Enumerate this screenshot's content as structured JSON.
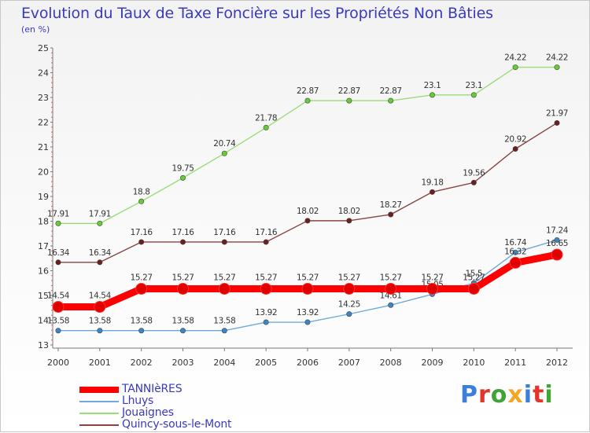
{
  "header": {
    "title": "Evolution du Taux de Taxe Foncière sur les Propriétés Non Bâties",
    "subtitle": "(en %)"
  },
  "logo": {
    "text": "Proxiti",
    "letter_colors": [
      "#3b7fd9",
      "#e2352b",
      "#3fa535",
      "#f5a623",
      "#3b7fd9",
      "#e2352b",
      "#3fa535"
    ]
  },
  "chart_data": {
    "type": "line",
    "title": "Evolution du Taux de Taxe Foncière sur les Propriétés Non Bâties",
    "ylabel": "(en %)",
    "xlabel": "",
    "ylim": [
      13,
      25
    ],
    "y_ticks": [
      13,
      14,
      15,
      16,
      17,
      18,
      19,
      20,
      21,
      22,
      23,
      24,
      25
    ],
    "x": [
      "2000",
      "2001",
      "2002",
      "2003",
      "2004",
      "2005",
      "2006",
      "2007",
      "2008",
      "2009",
      "2010",
      "2011",
      "2012"
    ],
    "grid": false,
    "legend_position": "bottom-left",
    "series": [
      {
        "name": "TANNIèRES",
        "color": "#ff0000",
        "marker_color": "#e00000",
        "thick": true,
        "values": [
          14.54,
          14.54,
          15.27,
          15.27,
          15.27,
          15.27,
          15.27,
          15.27,
          15.27,
          15.27,
          15.27,
          16.32,
          16.65
        ],
        "labels": [
          "14.54",
          "14.54",
          "15.27",
          "15.27",
          "15.27",
          "15.27",
          "15.27",
          "15.27",
          "15.27",
          "15.27",
          "15.27",
          "16.32",
          "16.65"
        ]
      },
      {
        "name": "Lhuys",
        "color": "#6fa8dc",
        "marker_color": "#3d85c6",
        "thick": false,
        "values": [
          13.58,
          13.58,
          13.58,
          13.58,
          13.58,
          13.92,
          13.92,
          14.25,
          14.61,
          15.05,
          15.5,
          16.74,
          17.24
        ],
        "labels": [
          "13.58",
          "13.58",
          "13.58",
          "13.58",
          "13.58",
          "13.92",
          "13.92",
          "14.25",
          "14.61",
          "15.05",
          "15.5",
          "16.74",
          "17.24"
        ]
      },
      {
        "name": "Jouaignes",
        "color": "#99dd77",
        "marker_color": "#66cc33",
        "thick": false,
        "values": [
          17.91,
          17.91,
          18.8,
          19.75,
          20.74,
          21.78,
          22.87,
          22.87,
          22.87,
          23.1,
          23.1,
          24.22,
          24.22
        ],
        "labels": [
          "17.91",
          "17.91",
          "18.8",
          "19.75",
          "20.74",
          "21.78",
          "22.87",
          "22.87",
          "22.87",
          "23.1",
          "23.1",
          "24.22",
          "24.22"
        ]
      },
      {
        "name": "Quincy-sous-le-Mont",
        "color": "#8b4343",
        "marker_color": "#6b1f1f",
        "thick": false,
        "values": [
          16.34,
          16.34,
          17.16,
          17.16,
          17.16,
          17.16,
          18.02,
          18.02,
          18.27,
          19.18,
          19.56,
          20.92,
          21.97
        ],
        "labels": [
          "16.34",
          "16.34",
          "17.16",
          "17.16",
          "17.16",
          "17.16",
          "18.02",
          "18.02",
          "18.27",
          "19.18",
          "19.56",
          "20.92",
          "21.97"
        ]
      }
    ]
  }
}
